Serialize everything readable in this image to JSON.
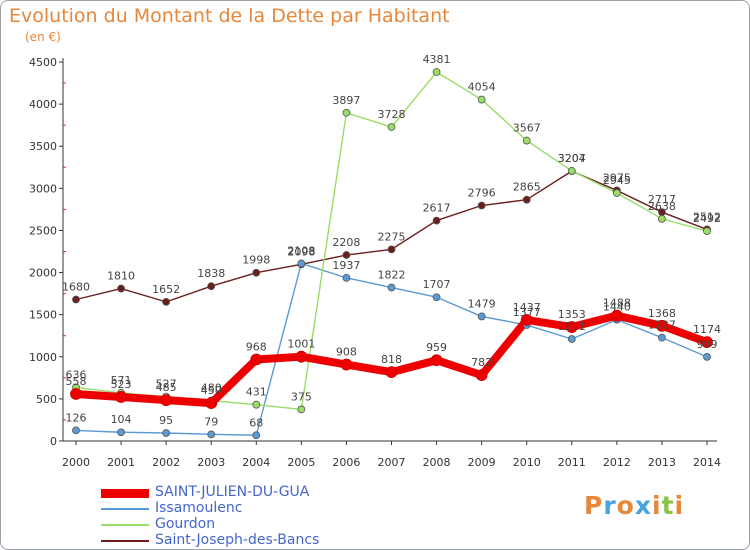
{
  "title": "Evolution du Montant de la Dette par Habitant",
  "subtitle": "(en €)",
  "logo": {
    "text": "Proxiti",
    "colors": [
      "#e6873a",
      "#4aa3df",
      "#e6873a",
      "#4aa3df",
      "#e6873a",
      "#8bc34a",
      "#e6873a"
    ]
  },
  "chart_data": {
    "type": "line",
    "title": "Evolution du Montant de la Dette par Habitant",
    "ylabel": "(en €)",
    "x": [
      2000,
      2001,
      2002,
      2003,
      2004,
      2005,
      2006,
      2007,
      2008,
      2009,
      2010,
      2011,
      2012,
      2013,
      2014
    ],
    "ylim": [
      0,
      4500
    ],
    "yticks": [
      0,
      500,
      1000,
      1500,
      2000,
      2500,
      3000,
      3500,
      4000,
      4500
    ],
    "grid": false,
    "legend_position": "bottom-left",
    "series": [
      {
        "name": "SAINT-JULIEN-DU-GUA",
        "color": "#ee0000",
        "values": [
          558,
          523,
          485,
          450,
          968,
          1001,
          908,
          818,
          959,
          782,
          1437,
          1353,
          1488,
          1368,
          1174
        ]
      },
      {
        "name": "Issamoulenc",
        "color": "#5b9bd5",
        "values": [
          126,
          104,
          95,
          79,
          68,
          2108,
          1937,
          1822,
          1707,
          1479,
          1377,
          1211,
          1440,
          1227,
          999
        ]
      },
      {
        "name": "Gourdon",
        "color": "#99dd66",
        "values": [
          636,
          571,
          527,
          480,
          431,
          375,
          3897,
          3728,
          4381,
          4054,
          3567,
          3207,
          2945,
          2638,
          2492
        ]
      },
      {
        "name": "Saint-Joseph-des-Bancs",
        "color": "#6b1e1e",
        "values": [
          1680,
          1810,
          1652,
          1838,
          1998,
          2098,
          2208,
          2275,
          2617,
          2796,
          2865,
          3204,
          2975,
          2717,
          2512
        ]
      }
    ]
  }
}
